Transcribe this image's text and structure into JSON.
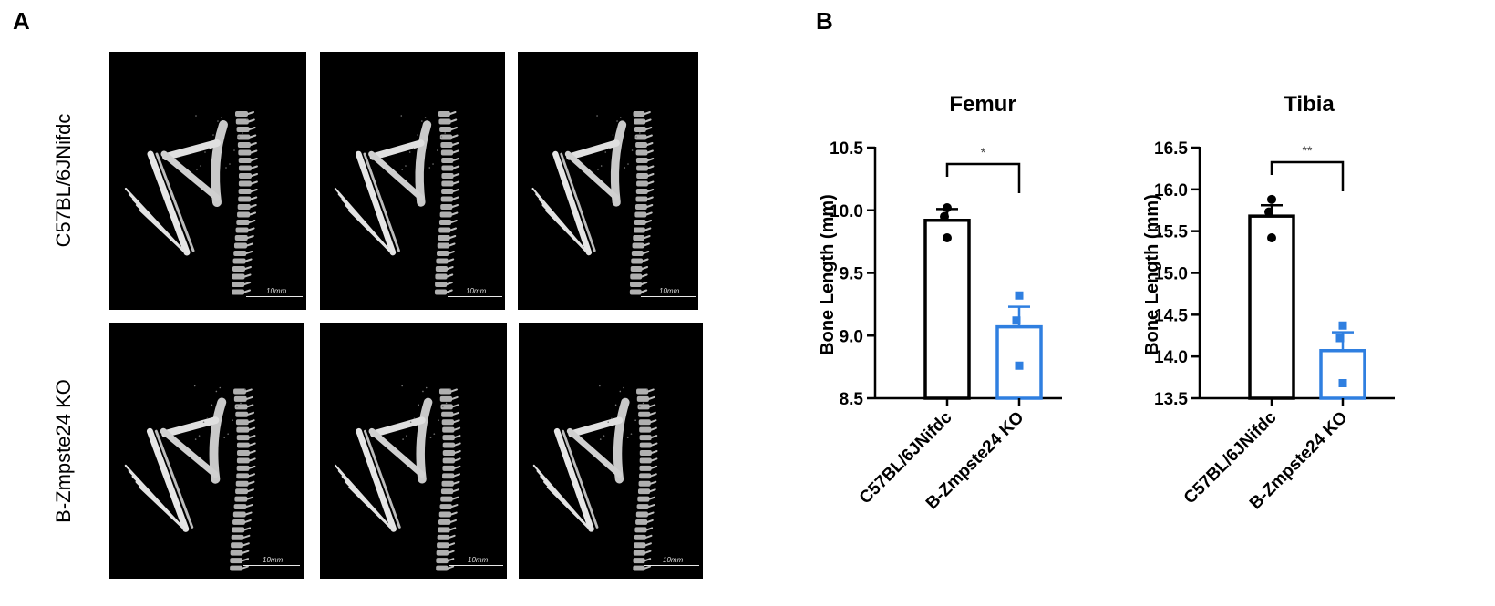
{
  "panel_labels": {
    "a": "A",
    "b": "B"
  },
  "row_labels": [
    "C57BL/6JNifdc",
    "B-Zmpste24 KO"
  ],
  "scale_bar_label": "10mm",
  "colors": {
    "control": "#000000",
    "ko": "#2f7fe0",
    "scan_background": "#000000"
  },
  "chart_data": [
    {
      "type": "bar",
      "title": "Femur",
      "ylabel": "Bone Length (mm)",
      "categories": [
        "C57BL/6JNifdc",
        "B-Zmpste24 KO"
      ],
      "values": [
        9.92,
        9.07
      ],
      "errors": [
        0.09,
        0.16
      ],
      "points": [
        [
          10.02,
          9.95,
          9.78
        ],
        [
          9.32,
          9.12,
          8.76
        ]
      ],
      "ylim": [
        8.5,
        10.5
      ],
      "yticks": [
        "8.5",
        "9.0",
        "9.5",
        "10.0",
        "10.5"
      ],
      "significance": "*"
    },
    {
      "type": "bar",
      "title": "Tibia",
      "ylabel": "Bone Length (mm)",
      "categories": [
        "C57BL/6JNifdc",
        "B-Zmpste24 KO"
      ],
      "values": [
        15.68,
        14.07
      ],
      "errors": [
        0.13,
        0.22
      ],
      "points": [
        [
          15.88,
          15.73,
          15.42
        ],
        [
          14.37,
          14.22,
          13.68
        ]
      ],
      "ylim": [
        13.5,
        16.5
      ],
      "yticks": [
        "13.5",
        "14.0",
        "14.5",
        "15.0",
        "15.5",
        "16.0",
        "16.5"
      ],
      "significance": "**"
    }
  ]
}
